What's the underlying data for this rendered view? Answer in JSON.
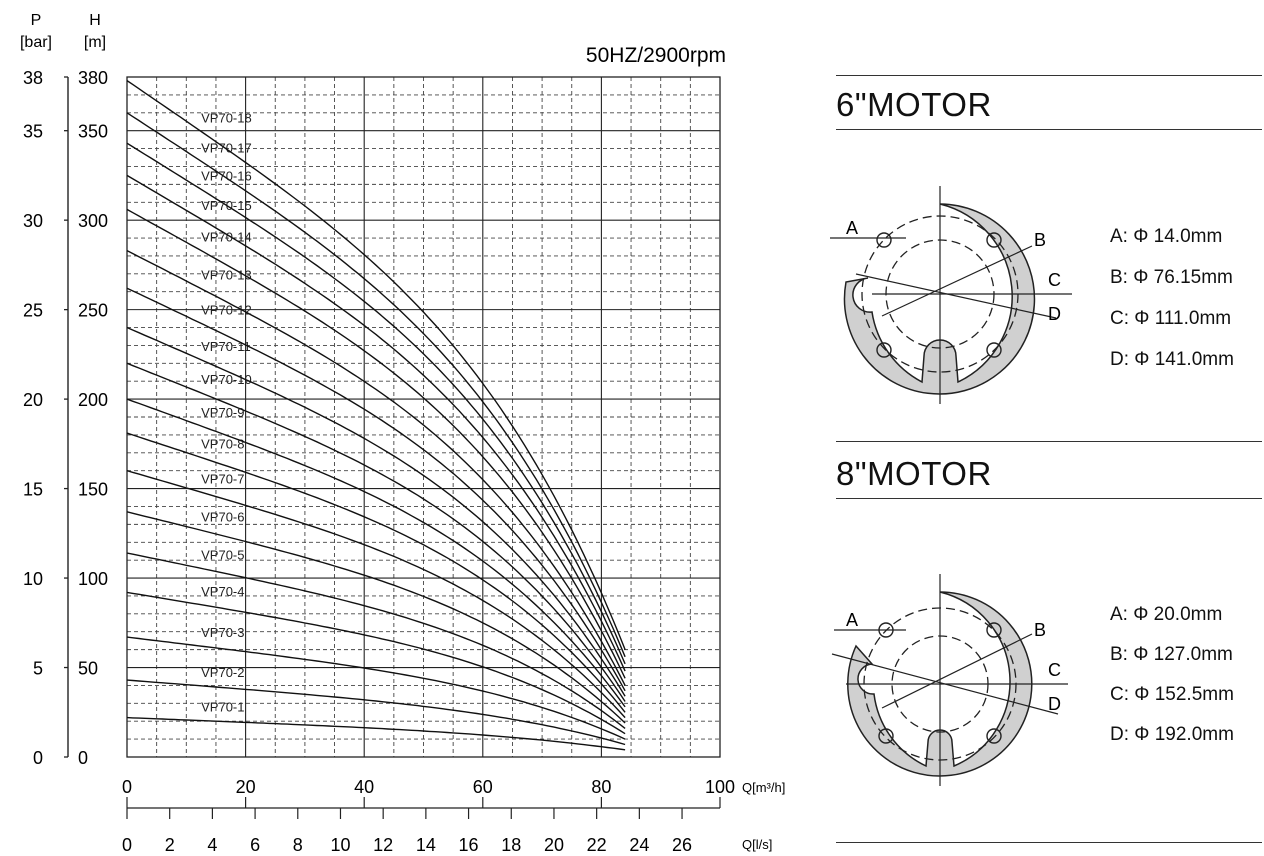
{
  "header": {
    "speed_label": "50HZ/2900rpm"
  },
  "chart_data": {
    "type": "line",
    "title": "",
    "subtitle": "50HZ/2900rpm",
    "x_axis": {
      "label": "Q[m³/h]",
      "range": [
        0,
        100
      ],
      "ticks": [
        0,
        20,
        40,
        60,
        80,
        100
      ]
    },
    "x_axis_secondary": {
      "label": "Q[l/s]",
      "ticks": [
        0,
        2,
        4,
        6,
        8,
        10,
        12,
        14,
        16,
        18,
        20,
        22,
        24,
        26
      ]
    },
    "y_axis_head": {
      "label_top": "H",
      "label_bottom": "[m]",
      "range": [
        0,
        380
      ],
      "ticks": [
        0,
        50,
        100,
        150,
        200,
        250,
        300,
        350,
        380
      ]
    },
    "y_axis_pressure": {
      "label_top": "P",
      "label_bottom": "[bar]",
      "range": [
        0,
        38
      ],
      "ticks": [
        0,
        5,
        10,
        15,
        20,
        25,
        30,
        35,
        38
      ]
    },
    "grid": true,
    "series": [
      {
        "name": "VP70-1",
        "H0": 22,
        "Hend": 4
      },
      {
        "name": "VP70-2",
        "H0": 43,
        "Hend": 7
      },
      {
        "name": "VP70-3",
        "H0": 67,
        "Hend": 10
      },
      {
        "name": "VP70-4",
        "H0": 92,
        "Hend": 13
      },
      {
        "name": "VP70-5",
        "H0": 114,
        "Hend": 16
      },
      {
        "name": "VP70-6",
        "H0": 137,
        "Hend": 19
      },
      {
        "name": "VP70-7",
        "H0": 160,
        "Hend": 22
      },
      {
        "name": "VP70-8",
        "H0": 181,
        "Hend": 25
      },
      {
        "name": "VP70-9",
        "H0": 200,
        "Hend": 28
      },
      {
        "name": "VP70-10",
        "H0": 220,
        "Hend": 31
      },
      {
        "name": "VP70-11",
        "H0": 240,
        "Hend": 34
      },
      {
        "name": "VP70-12",
        "H0": 262,
        "Hend": 37
      },
      {
        "name": "VP70-13",
        "H0": 283,
        "Hend": 40
      },
      {
        "name": "VP70-14",
        "H0": 306,
        "Hend": 44
      },
      {
        "name": "VP70-15",
        "H0": 325,
        "Hend": 48
      },
      {
        "name": "VP70-16",
        "H0": 343,
        "Hend": 52
      },
      {
        "name": "VP70-17",
        "H0": 360,
        "Hend": 56
      },
      {
        "name": "VP70-18",
        "H0": 378,
        "Hend": 60
      }
    ],
    "q_max": 84
  },
  "motors": [
    {
      "title": "6\"MOTOR",
      "dims": [
        "A: Φ 14.0mm",
        "B: Φ 76.15mm",
        "C: Φ 111.0mm",
        "D: Φ 141.0mm"
      ],
      "markers": [
        "A",
        "B",
        "C",
        "D"
      ]
    },
    {
      "title": "8\"MOTOR",
      "dims": [
        "A: Φ 20.0mm",
        "B: Φ 127.0mm",
        "C: Φ 152.5mm",
        "D: Φ 192.0mm"
      ],
      "markers": [
        "A",
        "B",
        "C",
        "D"
      ]
    }
  ]
}
